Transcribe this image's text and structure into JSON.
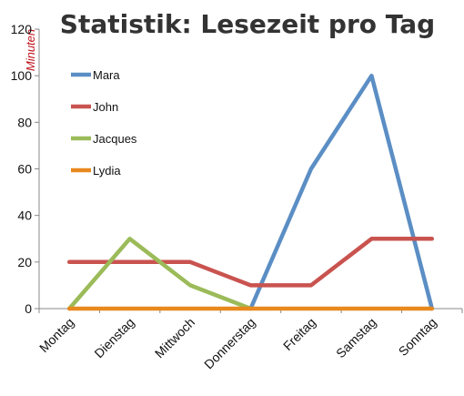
{
  "chart_data": {
    "type": "line",
    "title": "Statistik: Lesezeit pro Tag",
    "ylabel": "Minuten",
    "xlabel": "",
    "categories": [
      "Montag",
      "Dienstag",
      "Mittwoch",
      "Donnerstag",
      "Freitag",
      "Samstag",
      "Sonntag"
    ],
    "ylim": [
      0,
      120
    ],
    "yticks": [
      0,
      20,
      40,
      60,
      80,
      100,
      120
    ],
    "grid": false,
    "legend_position": "top-left",
    "series": [
      {
        "name": "Mara",
        "color": "#5b8ec4",
        "values": [
          null,
          null,
          null,
          0,
          60,
          100,
          0
        ]
      },
      {
        "name": "John",
        "color": "#c9534f",
        "values": [
          20,
          20,
          20,
          10,
          10,
          30,
          30
        ]
      },
      {
        "name": "Jacques",
        "color": "#9bbb59",
        "values": [
          0,
          30,
          10,
          0,
          null,
          null,
          null
        ]
      },
      {
        "name": "Lydia",
        "color": "#e8891e",
        "values": [
          0,
          0,
          0,
          0,
          0,
          0,
          0
        ]
      }
    ]
  }
}
